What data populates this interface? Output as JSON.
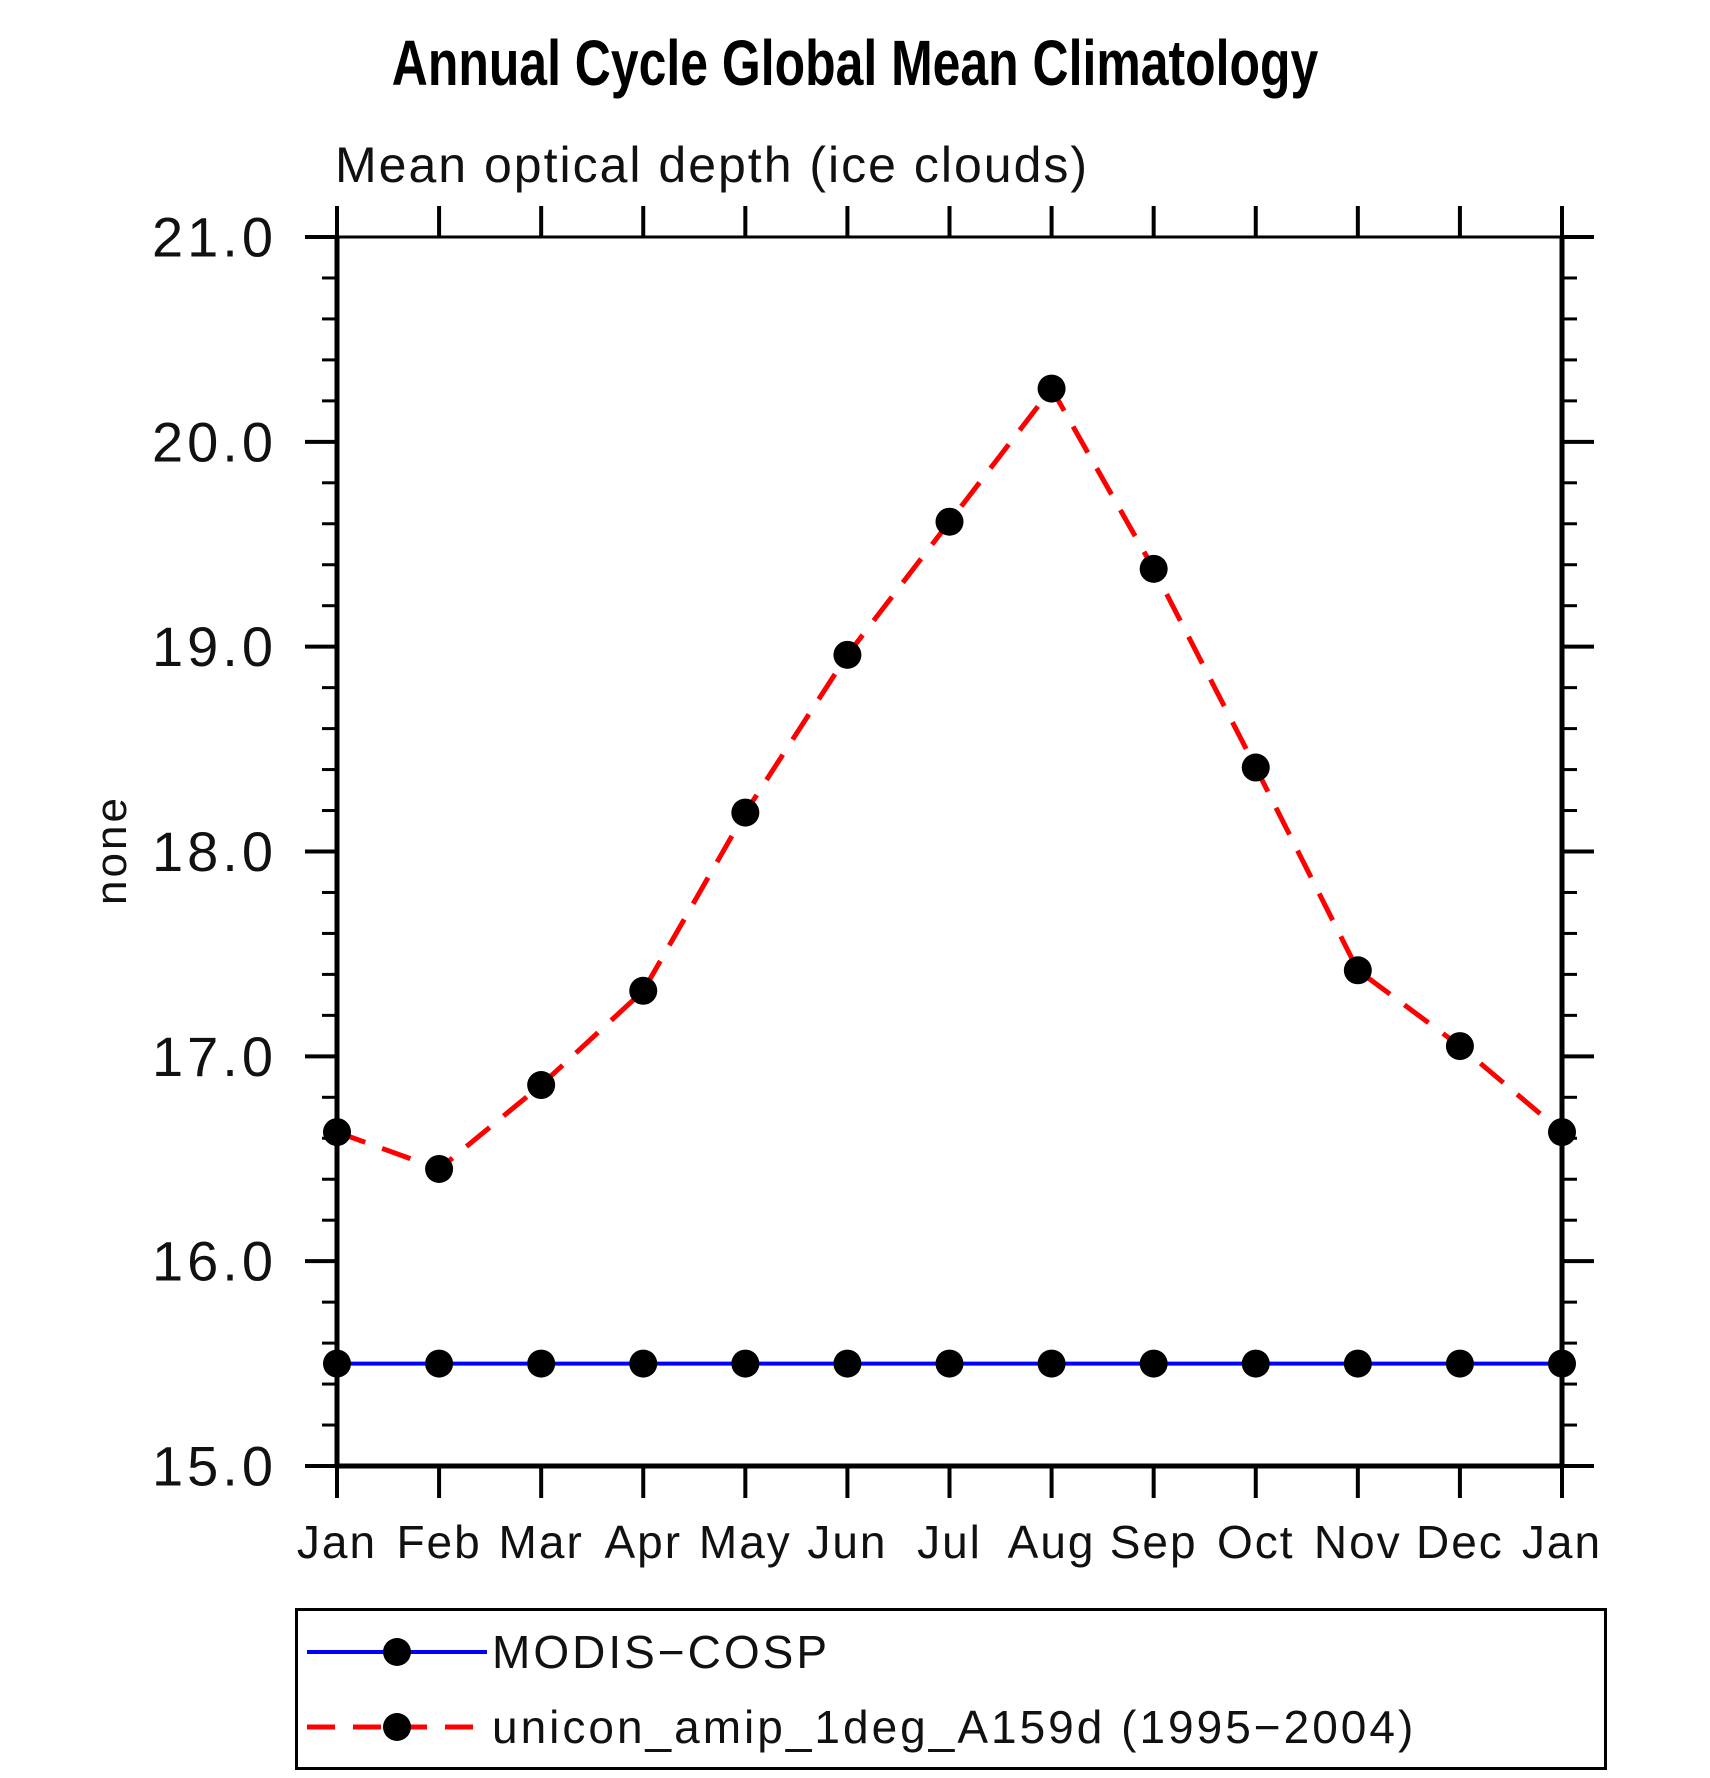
{
  "title": "Annual Cycle Global Mean Climatology",
  "subtitle": "Mean optical depth (ice clouds)",
  "ylabel": "none",
  "colors": {
    "axis": "#000000",
    "marker": "#000000",
    "series_modis": "#0000ff",
    "series_unicon": "#ff0000"
  },
  "chart_data": {
    "type": "line",
    "title": "Annual Cycle Global Mean Climatology",
    "subtitle": "Mean optical depth (ice clouds)",
    "xlabel": "",
    "ylabel": "none",
    "categories": [
      "Jan",
      "Feb",
      "Mar",
      "Apr",
      "May",
      "Jun",
      "Jul",
      "Aug",
      "Sep",
      "Oct",
      "Nov",
      "Dec",
      "Jan"
    ],
    "series": [
      {
        "name": "MODIS−COSP",
        "color": "#0000ff",
        "line_style": "solid",
        "line_width": 4,
        "marker": "circle",
        "marker_color": "#000000",
        "values": [
          15.5,
          15.5,
          15.5,
          15.5,
          15.5,
          15.5,
          15.5,
          15.5,
          15.5,
          15.5,
          15.5,
          15.5,
          15.5
        ]
      },
      {
        "name": "unicon_amip_1deg_A159d (1995−2004)",
        "color": "#ff0000",
        "line_style": "dashed",
        "line_width": 5,
        "marker": "circle",
        "marker_color": "#000000",
        "values": [
          16.63,
          16.45,
          16.86,
          17.32,
          18.19,
          18.96,
          19.61,
          20.26,
          19.38,
          18.41,
          17.42,
          17.05,
          16.63
        ]
      }
    ],
    "ylim": [
      15.0,
      21.0
    ],
    "ytick_labels": [
      "15.0",
      "16.0",
      "17.0",
      "18.0",
      "19.0",
      "20.0",
      "21.0"
    ],
    "ytick_step": 1.0,
    "ytick_minor_step": 0.2,
    "grid": false,
    "legend_position": "bottom"
  }
}
